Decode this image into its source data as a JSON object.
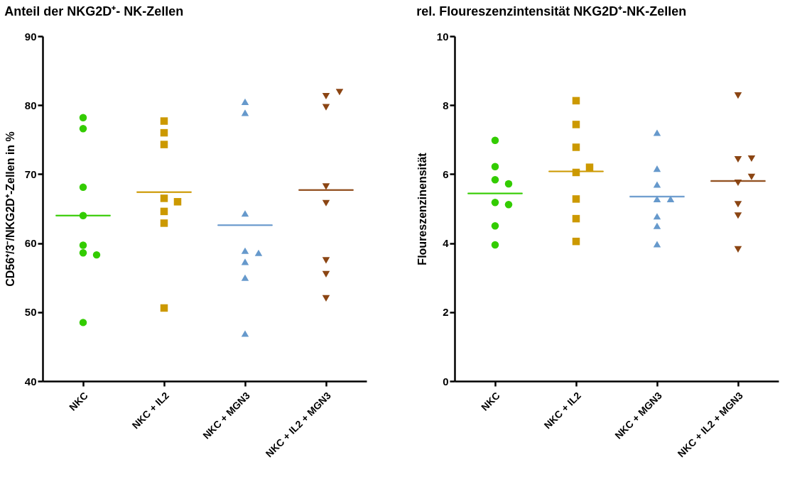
{
  "chart_data": [
    {
      "type": "scatter",
      "title": "Anteil der NKG2D⁺- NK-Zellen",
      "ylabel": "CD56⁺/3⁻/NKG2D⁺-Zellen in %",
      "categories": [
        "NKC",
        "NKC + IL2",
        "NKC + MGN3",
        "NKC + IL2 + MGN3"
      ],
      "ylim": [
        40,
        90
      ],
      "yticks": [
        40,
        50,
        60,
        70,
        80,
        90
      ],
      "grid": false,
      "series": [
        {
          "color": "#33cc00",
          "marker": "circle",
          "x": [
            "NKC",
            "NKC",
            "NKC",
            "NKC",
            "NKC",
            "NKC",
            "NKC",
            "NKC"
          ],
          "values": [
            78.2,
            76.6,
            68.1,
            64.0,
            59.7,
            58.6,
            58.3,
            48.5
          ]
        },
        {
          "color": "#cc9900",
          "marker": "square",
          "x": [
            "NKC + IL2",
            "NKC + IL2",
            "NKC + IL2",
            "NKC + IL2",
            "NKC + IL2",
            "NKC + IL2",
            "NKC + IL2",
            "NKC + IL2"
          ],
          "values": [
            77.7,
            76.0,
            74.3,
            66.5,
            66.0,
            64.6,
            62.9,
            50.6
          ]
        },
        {
          "color": "#6699cc",
          "marker": "triangle",
          "x": [
            "NKC + MGN3",
            "NKC + MGN3",
            "NKC + MGN3",
            "NKC + MGN3",
            "NKC + MGN3",
            "NKC + MGN3",
            "NKC + MGN3",
            "NKC + MGN3"
          ],
          "values": [
            80.5,
            78.9,
            64.3,
            58.9,
            58.6,
            57.3,
            55.0,
            46.9
          ]
        },
        {
          "color": "#8b4513",
          "marker": "triangle-down",
          "x": [
            "NKC + IL2 + MGN3",
            "NKC + IL2 + MGN3",
            "NKC + IL2 + MGN3",
            "NKC + IL2 + MGN3",
            "NKC + IL2 + MGN3",
            "NKC + IL2 + MGN3",
            "NKC + IL2 + MGN3",
            "NKC + IL2 + MGN3"
          ],
          "values": [
            81.3,
            81.9,
            79.7,
            68.2,
            65.8,
            57.5,
            55.5,
            52.0
          ]
        },
        {
          "type": "box",
          "x": [
            "NKC",
            "NKC + IL2",
            "NKC + MGN3",
            "NKC + IL2 + MGN3"
          ],
          "colors": [
            "#33cc00",
            "#cc9900",
            "#6699cc",
            "#8b4513"
          ],
          "boxes": [
            {
              "low": 64.0,
              "q1": 64.0,
              "median": 64.0,
              "q3": 64.0,
              "high": 64.0
            },
            {
              "low": 67.4,
              "q1": 67.4,
              "median": 67.4,
              "q3": 67.4,
              "high": 67.4
            },
            {
              "low": 62.6,
              "q1": 62.6,
              "median": 62.6,
              "q3": 62.6,
              "high": 62.6
            },
            {
              "low": 67.7,
              "q1": 67.7,
              "median": 67.7,
              "q3": 67.7,
              "high": 67.7
            }
          ]
        }
      ]
    },
    {
      "type": "scatter",
      "title": "rel. Floureszenzintensität NKG2D⁺-NK-Zellen",
      "ylabel": "Floureszenzinensität",
      "categories": [
        "NKC",
        "NKC + IL2",
        "NKC + MGN3",
        "NKC + IL2 + MGN3"
      ],
      "ylim": [
        0,
        10
      ],
      "yticks": [
        0,
        2,
        4,
        6,
        8,
        10
      ],
      "grid": false,
      "series": [
        {
          "color": "#33cc00",
          "marker": "circle",
          "x": [
            "NKC",
            "NKC",
            "NKC",
            "NKC",
            "NKC",
            "NKC",
            "NKC",
            "NKC"
          ],
          "values": [
            6.98,
            6.22,
            5.84,
            5.72,
            5.18,
            5.12,
            4.5,
            3.95
          ]
        },
        {
          "color": "#cc9900",
          "marker": "square",
          "x": [
            "NKC + IL2",
            "NKC + IL2",
            "NKC + IL2",
            "NKC + IL2",
            "NKC + IL2",
            "NKC + IL2",
            "NKC + IL2",
            "NKC + IL2"
          ],
          "values": [
            8.13,
            7.44,
            6.78,
            6.05,
            6.2,
            5.28,
            4.71,
            4.05
          ]
        },
        {
          "color": "#6699cc",
          "marker": "triangle",
          "x": [
            "NKC + MGN3",
            "NKC + MGN3",
            "NKC + MGN3",
            "NKC + MGN3",
            "NKC + MGN3",
            "NKC + MGN3",
            "NKC + MGN3",
            "NKC + MGN3"
          ],
          "values": [
            7.2,
            6.16,
            5.7,
            5.28,
            5.28,
            4.78,
            4.5,
            3.97
          ]
        },
        {
          "color": "#8b4513",
          "marker": "triangle-down",
          "x": [
            "NKC + IL2 + MGN3",
            "NKC + IL2 + MGN3",
            "NKC + IL2 + MGN3",
            "NKC + IL2 + MGN3",
            "NKC + IL2 + MGN3",
            "NKC + IL2 + MGN3",
            "NKC + IL2 + MGN3",
            "NKC + IL2 + MGN3"
          ],
          "values": [
            8.28,
            6.43,
            6.45,
            5.75,
            5.92,
            5.13,
            4.8,
            3.82
          ]
        },
        {
          "type": "box",
          "x": [
            "NKC",
            "NKC + IL2",
            "NKC + MGN3",
            "NKC + IL2 + MGN3"
          ],
          "colors": [
            "#33cc00",
            "#cc9900",
            "#6699cc",
            "#8b4513"
          ],
          "boxes": [
            {
              "low": 5.44,
              "q1": 5.44,
              "median": 5.44,
              "q3": 5.44,
              "high": 5.44
            },
            {
              "low": 6.08,
              "q1": 6.08,
              "median": 6.08,
              "q3": 6.08,
              "high": 6.08
            },
            {
              "low": 5.35,
              "q1": 5.35,
              "median": 5.35,
              "q3": 5.35,
              "high": 5.35
            },
            {
              "low": 5.8,
              "q1": 5.8,
              "median": 5.8,
              "q3": 5.8,
              "high": 5.8
            }
          ]
        }
      ]
    }
  ]
}
